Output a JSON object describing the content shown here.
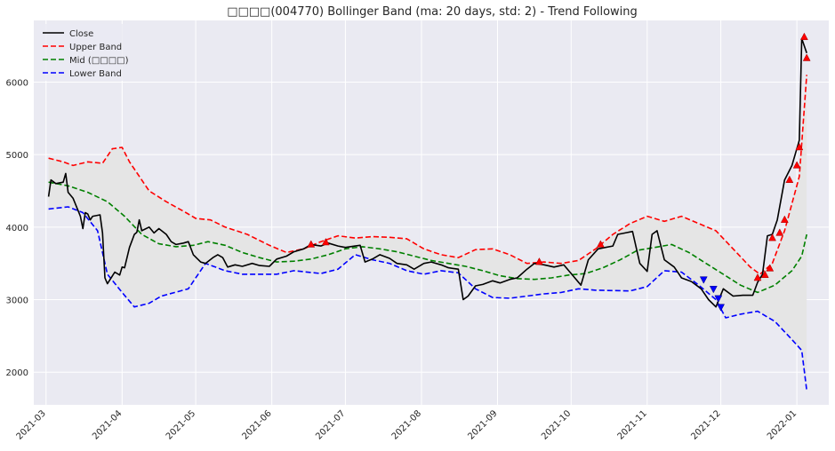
{
  "chart_data": {
    "type": "line",
    "title": "□□□□(004770) Bollinger Band (ma: 20 days, std: 2) - Trend Following",
    "xlabel": "",
    "ylabel": "",
    "x_range": [
      "2021-02-24",
      "2022-01-14"
    ],
    "ylim": [
      1550,
      6850
    ],
    "grid": true,
    "legend_position": "top-left",
    "x_ticks": [
      "2021-03",
      "2021-04",
      "2021-05",
      "2021-06",
      "2021-07",
      "2021-08",
      "2021-09",
      "2021-10",
      "2021-11",
      "2021-12",
      "2022-01"
    ],
    "y_ticks": [
      2000,
      3000,
      4000,
      5000,
      6000
    ],
    "series": [
      {
        "name": "Close",
        "color": "#000000",
        "style": "solid",
        "points": [
          [
            "2021-03-02",
            4420
          ],
          [
            "2021-03-03",
            4650
          ],
          [
            "2021-03-05",
            4600
          ],
          [
            "2021-03-08",
            4620
          ],
          [
            "2021-03-09",
            4740
          ],
          [
            "2021-03-10",
            4480
          ],
          [
            "2021-03-12",
            4400
          ],
          [
            "2021-03-15",
            4150
          ],
          [
            "2021-03-16",
            3980
          ],
          [
            "2021-03-17",
            4200
          ],
          [
            "2021-03-18",
            4180
          ],
          [
            "2021-03-19",
            4100
          ],
          [
            "2021-03-20",
            4150
          ],
          [
            "2021-03-23",
            4170
          ],
          [
            "2021-03-24",
            3920
          ],
          [
            "2021-03-25",
            3300
          ],
          [
            "2021-03-26",
            3220
          ],
          [
            "2021-03-29",
            3380
          ],
          [
            "2021-03-31",
            3340
          ],
          [
            "2021-04-01",
            3450
          ],
          [
            "2021-04-02",
            3440
          ],
          [
            "2021-04-04",
            3720
          ],
          [
            "2021-04-06",
            3900
          ],
          [
            "2021-04-07",
            3930
          ],
          [
            "2021-04-08",
            4100
          ],
          [
            "2021-04-09",
            3950
          ],
          [
            "2021-04-12",
            4000
          ],
          [
            "2021-04-14",
            3920
          ],
          [
            "2021-04-16",
            3980
          ],
          [
            "2021-04-19",
            3900
          ],
          [
            "2021-04-21",
            3800
          ],
          [
            "2021-04-23",
            3760
          ],
          [
            "2021-04-26",
            3780
          ],
          [
            "2021-04-28",
            3800
          ],
          [
            "2021-04-30",
            3620
          ],
          [
            "2021-05-03",
            3520
          ],
          [
            "2021-05-05",
            3500
          ],
          [
            "2021-05-08",
            3580
          ],
          [
            "2021-05-10",
            3620
          ],
          [
            "2021-05-12",
            3580
          ],
          [
            "2021-05-14",
            3450
          ],
          [
            "2021-05-17",
            3480
          ],
          [
            "2021-05-20",
            3460
          ],
          [
            "2021-05-24",
            3500
          ],
          [
            "2021-05-27",
            3470
          ],
          [
            "2021-05-31",
            3460
          ],
          [
            "2021-06-03",
            3560
          ],
          [
            "2021-06-07",
            3600
          ],
          [
            "2021-06-10",
            3660
          ],
          [
            "2021-06-14",
            3700
          ],
          [
            "2021-06-17",
            3760
          ],
          [
            "2021-06-21",
            3740
          ],
          [
            "2021-06-24",
            3780
          ],
          [
            "2021-06-28",
            3740
          ],
          [
            "2021-07-01",
            3720
          ],
          [
            "2021-07-05",
            3740
          ],
          [
            "2021-07-07",
            3750
          ],
          [
            "2021-07-09",
            3520
          ],
          [
            "2021-07-12",
            3560
          ],
          [
            "2021-07-15",
            3620
          ],
          [
            "2021-07-19",
            3570
          ],
          [
            "2021-07-22",
            3500
          ],
          [
            "2021-07-26",
            3480
          ],
          [
            "2021-07-29",
            3420
          ],
          [
            "2021-08-02",
            3500
          ],
          [
            "2021-08-05",
            3520
          ],
          [
            "2021-08-09",
            3480
          ],
          [
            "2021-08-12",
            3440
          ],
          [
            "2021-08-16",
            3420
          ],
          [
            "2021-08-18",
            3000
          ],
          [
            "2021-08-20",
            3050
          ],
          [
            "2021-08-23",
            3190
          ],
          [
            "2021-08-26",
            3210
          ],
          [
            "2021-08-30",
            3260
          ],
          [
            "2021-09-02",
            3230
          ],
          [
            "2021-09-06",
            3280
          ],
          [
            "2021-09-09",
            3300
          ],
          [
            "2021-09-13",
            3420
          ],
          [
            "2021-09-16",
            3500
          ],
          [
            "2021-09-20",
            3480
          ],
          [
            "2021-09-24",
            3450
          ],
          [
            "2021-09-28",
            3480
          ],
          [
            "2021-10-01",
            3360
          ],
          [
            "2021-10-05",
            3200
          ],
          [
            "2021-10-08",
            3550
          ],
          [
            "2021-10-12",
            3700
          ],
          [
            "2021-10-15",
            3720
          ],
          [
            "2021-10-18",
            3740
          ],
          [
            "2021-10-20",
            3900
          ],
          [
            "2021-10-23",
            3920
          ],
          [
            "2021-10-26",
            3940
          ],
          [
            "2021-10-29",
            3500
          ],
          [
            "2021-11-01",
            3390
          ],
          [
            "2021-11-03",
            3900
          ],
          [
            "2021-11-05",
            3950
          ],
          [
            "2021-11-08",
            3550
          ],
          [
            "2021-11-12",
            3450
          ],
          [
            "2021-11-15",
            3300
          ],
          [
            "2021-11-19",
            3250
          ],
          [
            "2021-11-23",
            3150
          ],
          [
            "2021-11-26",
            3000
          ],
          [
            "2021-11-29",
            2900
          ],
          [
            "2021-12-02",
            3150
          ],
          [
            "2021-12-06",
            3050
          ],
          [
            "2021-12-10",
            3060
          ],
          [
            "2021-12-14",
            3060
          ],
          [
            "2021-12-16",
            3240
          ],
          [
            "2021-12-18",
            3350
          ],
          [
            "2021-12-20",
            3880
          ],
          [
            "2021-12-22",
            3900
          ],
          [
            "2021-12-24",
            4100
          ],
          [
            "2021-12-27",
            4650
          ],
          [
            "2021-12-30",
            4850
          ],
          [
            "2022-01-02",
            5200
          ],
          [
            "2022-01-03",
            6600
          ],
          [
            "2022-01-05",
            6400
          ]
        ]
      },
      {
        "name": "Upper Band",
        "color": "#ff0000",
        "style": "dashed",
        "points": [
          [
            "2021-03-02",
            4950
          ],
          [
            "2021-03-08",
            4900
          ],
          [
            "2021-03-12",
            4850
          ],
          [
            "2021-03-18",
            4900
          ],
          [
            "2021-03-24",
            4880
          ],
          [
            "2021-03-28",
            5080
          ],
          [
            "2021-04-01",
            5100
          ],
          [
            "2021-04-04",
            4900
          ],
          [
            "2021-04-12",
            4500
          ],
          [
            "2021-04-19",
            4350
          ],
          [
            "2021-04-27",
            4200
          ],
          [
            "2021-05-01",
            4120
          ],
          [
            "2021-05-07",
            4100
          ],
          [
            "2021-05-13",
            4000
          ],
          [
            "2021-05-22",
            3900
          ],
          [
            "2021-05-31",
            3750
          ],
          [
            "2021-06-07",
            3650
          ],
          [
            "2021-06-14",
            3700
          ],
          [
            "2021-06-21",
            3800
          ],
          [
            "2021-06-28",
            3880
          ],
          [
            "2021-07-05",
            3850
          ],
          [
            "2021-07-12",
            3870
          ],
          [
            "2021-07-19",
            3860
          ],
          [
            "2021-07-26",
            3840
          ],
          [
            "2021-08-02",
            3700
          ],
          [
            "2021-08-09",
            3620
          ],
          [
            "2021-08-16",
            3580
          ],
          [
            "2021-08-23",
            3690
          ],
          [
            "2021-08-30",
            3700
          ],
          [
            "2021-09-06",
            3620
          ],
          [
            "2021-09-13",
            3500
          ],
          [
            "2021-09-20",
            3520
          ],
          [
            "2021-09-27",
            3500
          ],
          [
            "2021-10-04",
            3540
          ],
          [
            "2021-10-11",
            3700
          ],
          [
            "2021-10-18",
            3900
          ],
          [
            "2021-10-25",
            4050
          ],
          [
            "2021-11-01",
            4150
          ],
          [
            "2021-11-08",
            4080
          ],
          [
            "2021-11-15",
            4150
          ],
          [
            "2021-11-22",
            4050
          ],
          [
            "2021-11-29",
            3950
          ],
          [
            "2021-12-06",
            3700
          ],
          [
            "2021-12-13",
            3450
          ],
          [
            "2021-12-17",
            3350
          ],
          [
            "2021-12-22",
            3500
          ],
          [
            "2021-12-27",
            3950
          ],
          [
            "2022-01-02",
            4700
          ],
          [
            "2022-01-05",
            6100
          ]
        ]
      },
      {
        "name": "Mid (□□□□)",
        "color": "#008000",
        "style": "dashed",
        "points": [
          [
            "2021-03-02",
            4620
          ],
          [
            "2021-03-10",
            4570
          ],
          [
            "2021-03-18",
            4480
          ],
          [
            "2021-03-26",
            4350
          ],
          [
            "2021-04-02",
            4150
          ],
          [
            "2021-04-09",
            3900
          ],
          [
            "2021-04-16",
            3770
          ],
          [
            "2021-04-23",
            3730
          ],
          [
            "2021-04-30",
            3750
          ],
          [
            "2021-05-06",
            3800
          ],
          [
            "2021-05-13",
            3750
          ],
          [
            "2021-05-20",
            3650
          ],
          [
            "2021-05-27",
            3580
          ],
          [
            "2021-06-03",
            3520
          ],
          [
            "2021-06-10",
            3530
          ],
          [
            "2021-06-17",
            3560
          ],
          [
            "2021-06-24",
            3620
          ],
          [
            "2021-07-01",
            3700
          ],
          [
            "2021-07-08",
            3730
          ],
          [
            "2021-07-15",
            3700
          ],
          [
            "2021-07-22",
            3660
          ],
          [
            "2021-07-29",
            3600
          ],
          [
            "2021-08-05",
            3540
          ],
          [
            "2021-08-12",
            3500
          ],
          [
            "2021-08-19",
            3460
          ],
          [
            "2021-08-26",
            3400
          ],
          [
            "2021-09-02",
            3330
          ],
          [
            "2021-09-09",
            3290
          ],
          [
            "2021-09-16",
            3280
          ],
          [
            "2021-09-23",
            3300
          ],
          [
            "2021-09-30",
            3340
          ],
          [
            "2021-10-07",
            3360
          ],
          [
            "2021-10-14",
            3440
          ],
          [
            "2021-10-21",
            3550
          ],
          [
            "2021-10-28",
            3680
          ],
          [
            "2021-11-04",
            3720
          ],
          [
            "2021-11-11",
            3760
          ],
          [
            "2021-11-18",
            3650
          ],
          [
            "2021-11-25",
            3500
          ],
          [
            "2021-12-02",
            3350
          ],
          [
            "2021-12-09",
            3200
          ],
          [
            "2021-12-16",
            3100
          ],
          [
            "2021-12-23",
            3200
          ],
          [
            "2021-12-30",
            3400
          ],
          [
            "2022-01-03",
            3600
          ],
          [
            "2022-01-05",
            3900
          ]
        ]
      },
      {
        "name": "Lower Band",
        "color": "#0000ff",
        "style": "dashed",
        "points": [
          [
            "2021-03-02",
            4250
          ],
          [
            "2021-03-10",
            4280
          ],
          [
            "2021-03-16",
            4200
          ],
          [
            "2021-03-22",
            3950
          ],
          [
            "2021-03-26",
            3350
          ],
          [
            "2021-04-01",
            3100
          ],
          [
            "2021-04-06",
            2900
          ],
          [
            "2021-04-12",
            2950
          ],
          [
            "2021-04-17",
            3050
          ],
          [
            "2021-04-28",
            3150
          ],
          [
            "2021-05-05",
            3500
          ],
          [
            "2021-05-13",
            3400
          ],
          [
            "2021-05-20",
            3350
          ],
          [
            "2021-06-03",
            3350
          ],
          [
            "2021-06-10",
            3400
          ],
          [
            "2021-06-21",
            3360
          ],
          [
            "2021-06-28",
            3420
          ],
          [
            "2021-07-05",
            3620
          ],
          [
            "2021-07-12",
            3550
          ],
          [
            "2021-07-19",
            3500
          ],
          [
            "2021-07-26",
            3400
          ],
          [
            "2021-08-02",
            3350
          ],
          [
            "2021-08-09",
            3400
          ],
          [
            "2021-08-16",
            3370
          ],
          [
            "2021-08-23",
            3150
          ],
          [
            "2021-08-30",
            3030
          ],
          [
            "2021-09-06",
            3020
          ],
          [
            "2021-09-13",
            3050
          ],
          [
            "2021-09-20",
            3080
          ],
          [
            "2021-09-27",
            3100
          ],
          [
            "2021-10-04",
            3150
          ],
          [
            "2021-10-11",
            3130
          ],
          [
            "2021-10-25",
            3120
          ],
          [
            "2021-11-01",
            3180
          ],
          [
            "2021-11-08",
            3400
          ],
          [
            "2021-11-15",
            3380
          ],
          [
            "2021-11-22",
            3200
          ],
          [
            "2021-11-29",
            3000
          ],
          [
            "2021-12-03",
            2750
          ],
          [
            "2021-12-09",
            2800
          ],
          [
            "2021-12-16",
            2840
          ],
          [
            "2021-12-23",
            2700
          ],
          [
            "2021-12-30",
            2450
          ],
          [
            "2022-01-03",
            2300
          ],
          [
            "2022-01-05",
            1750
          ]
        ]
      }
    ],
    "buy_signals": {
      "marker": "triangle-up",
      "color": "#ff0000",
      "points": [
        [
          "2021-06-17",
          3760
        ],
        [
          "2021-06-23",
          3790
        ],
        [
          "2021-09-18",
          3520
        ],
        [
          "2021-10-13",
          3760
        ],
        [
          "2021-12-16",
          3300
        ],
        [
          "2021-12-19",
          3340
        ],
        [
          "2021-12-21",
          3430
        ],
        [
          "2021-12-22",
          3850
        ],
        [
          "2021-12-25",
          3920
        ],
        [
          "2021-12-27",
          4100
        ],
        [
          "2021-12-29",
          4650
        ],
        [
          "2022-01-01",
          4850
        ],
        [
          "2022-01-02",
          5100
        ],
        [
          "2022-01-04",
          6620
        ],
        [
          "2022-01-05",
          6330
        ]
      ]
    },
    "sell_signals": {
      "marker": "triangle-down",
      "color": "#0000ff",
      "points": [
        [
          "2021-11-24",
          3280
        ],
        [
          "2021-11-28",
          3150
        ],
        [
          "2021-11-30",
          3020
        ],
        [
          "2021-12-01",
          2900
        ]
      ]
    }
  }
}
